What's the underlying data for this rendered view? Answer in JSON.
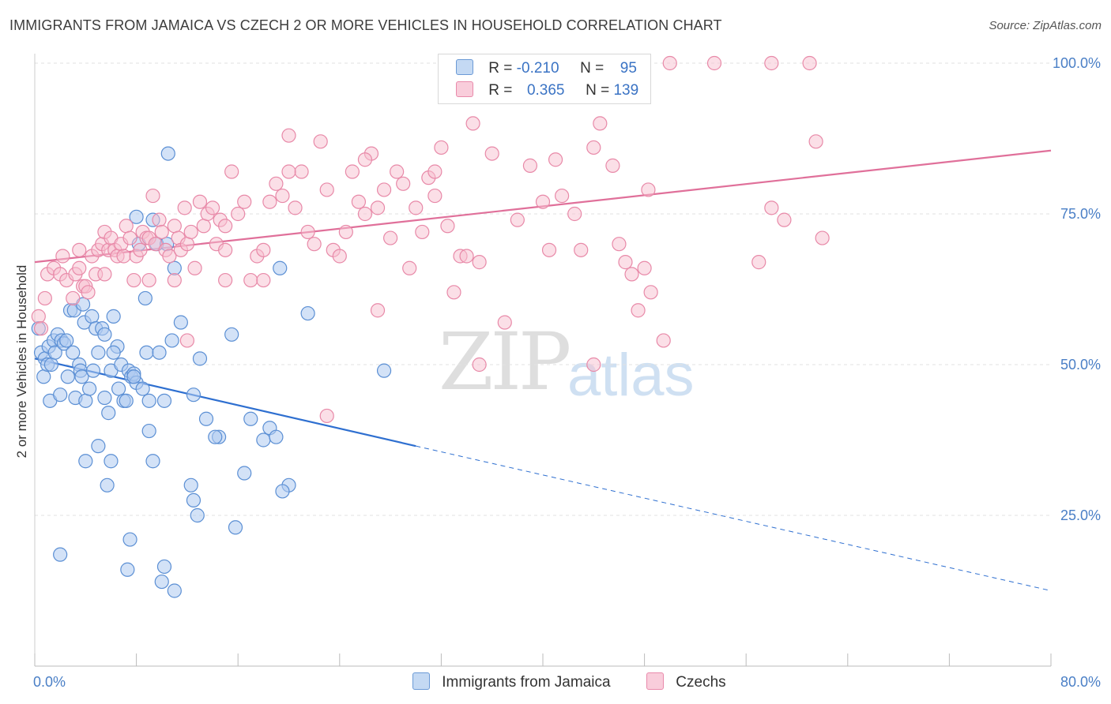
{
  "header": {
    "title": "IMMIGRANTS FROM JAMAICA VS CZECH 2 OR MORE VEHICLES IN HOUSEHOLD CORRELATION CHART",
    "source": "Source: ZipAtlas.com"
  },
  "watermark": {
    "zip": "ZIP",
    "atlas": "atlas"
  },
  "legend": {
    "rows": [
      {
        "r_label": "R =",
        "r_value": "-0.210",
        "n_label": "N =",
        "n_value": "95"
      },
      {
        "r_label": "R =",
        "r_value": "0.365",
        "n_label": "N =",
        "n_value": "139"
      }
    ]
  },
  "bottom_legend": {
    "series_a": "Immigrants from Jamaica",
    "series_b": "Czechs"
  },
  "colors": {
    "jamaica_fill": "#aecbf0",
    "jamaica_stroke": "#5b8fd4",
    "jamaica_line": "#2e6fd0",
    "czech_fill": "#f7bfd0",
    "czech_stroke": "#e889a8",
    "czech_line": "#e0709a",
    "tick_label": "#4a7fc6",
    "grid": "#e2e2e2"
  },
  "chart_data": {
    "type": "scatter",
    "ylabel": "2 or more Vehicles in Household",
    "xlim": [
      0,
      80
    ],
    "ylim": [
      0,
      105
    ],
    "x_tick_labels": [
      "0.0%",
      "80.0%"
    ],
    "y_ticks": [
      25,
      50,
      75,
      100
    ],
    "y_tick_labels": [
      "25.0%",
      "50.0%",
      "75.0%",
      "100.0%"
    ],
    "grid": true,
    "legend_placement": "top-center",
    "series": [
      {
        "name": "Immigrants from Jamaica",
        "r": -0.21,
        "n": 95,
        "trend": {
          "x0": 0,
          "y0": 51,
          "x1": 30,
          "y1": 36.5,
          "x_extended": 80,
          "y_extended": 12.5
        },
        "points": [
          [
            0.3,
            56
          ],
          [
            0.5,
            52
          ],
          [
            0.7,
            48
          ],
          [
            0.8,
            51
          ],
          [
            1.0,
            50
          ],
          [
            1.1,
            53
          ],
          [
            1.2,
            44
          ],
          [
            1.3,
            50
          ],
          [
            1.5,
            54
          ],
          [
            1.6,
            52
          ],
          [
            1.8,
            55
          ],
          [
            2.0,
            45
          ],
          [
            2.1,
            54
          ],
          [
            2.3,
            53.5
          ],
          [
            2.5,
            54
          ],
          [
            2.6,
            48
          ],
          [
            2.8,
            59
          ],
          [
            3.0,
            52
          ],
          [
            3.1,
            59
          ],
          [
            3.2,
            44.5
          ],
          [
            3.5,
            50
          ],
          [
            3.6,
            49
          ],
          [
            3.7,
            48
          ],
          [
            3.9,
            57
          ],
          [
            4.0,
            44
          ],
          [
            4.3,
            46
          ],
          [
            4.5,
            58
          ],
          [
            4.6,
            49
          ],
          [
            4.8,
            56
          ],
          [
            5.0,
            52
          ],
          [
            5.3,
            56
          ],
          [
            5.5,
            55
          ],
          [
            5.8,
            42
          ],
          [
            6.0,
            49
          ],
          [
            6.2,
            58
          ],
          [
            6.5,
            53
          ],
          [
            6.6,
            46
          ],
          [
            6.8,
            50
          ],
          [
            7.0,
            44
          ],
          [
            7.2,
            44
          ],
          [
            7.4,
            49
          ],
          [
            7.6,
            48
          ],
          [
            7.8,
            48.5
          ],
          [
            8.0,
            47
          ],
          [
            8.2,
            70
          ],
          [
            8.5,
            46
          ],
          [
            8.7,
            61
          ],
          [
            8.8,
            52
          ],
          [
            9.0,
            39
          ],
          [
            9.3,
            74
          ],
          [
            9.6,
            70
          ],
          [
            9.8,
            52
          ],
          [
            10.2,
            44
          ],
          [
            10.4,
            70
          ],
          [
            10.8,
            54
          ],
          [
            11.0,
            66
          ],
          [
            12.5,
            45
          ],
          [
            13.0,
            51
          ],
          [
            13.5,
            41
          ],
          [
            14.5,
            38
          ],
          [
            15.5,
            55
          ],
          [
            15.8,
            23
          ],
          [
            16.5,
            32
          ],
          [
            17.0,
            41
          ],
          [
            18.0,
            37.5
          ],
          [
            18.5,
            39.5
          ],
          [
            19.0,
            38
          ],
          [
            19.3,
            66
          ],
          [
            21.5,
            58.5
          ],
          [
            27.5,
            49
          ],
          [
            5.5,
            44.5
          ],
          [
            4.0,
            34
          ],
          [
            5.0,
            36.5
          ],
          [
            5.7,
            30
          ],
          [
            6.0,
            34
          ],
          [
            7.5,
            21
          ],
          [
            7.3,
            16
          ],
          [
            9.3,
            34
          ],
          [
            10.2,
            16.5
          ],
          [
            10.0,
            14
          ],
          [
            11.0,
            12.5
          ],
          [
            12.3,
            30
          ],
          [
            12.5,
            27.5
          ],
          [
            12.8,
            25
          ],
          [
            14.2,
            38
          ],
          [
            20.0,
            30
          ],
          [
            19.5,
            29
          ],
          [
            2.0,
            18.5
          ],
          [
            10.5,
            85
          ],
          [
            8.0,
            74.5
          ],
          [
            3.8,
            60
          ],
          [
            6.2,
            52
          ],
          [
            7.8,
            48
          ],
          [
            9.0,
            44
          ],
          [
            11.5,
            57
          ]
        ]
      },
      {
        "name": "Czechs",
        "r": 0.365,
        "n": 139,
        "trend": {
          "x0": 0,
          "y0": 67,
          "x1": 80,
          "y1": 85.5
        },
        "points": [
          [
            0.3,
            58
          ],
          [
            0.5,
            56
          ],
          [
            0.8,
            61
          ],
          [
            1.0,
            65
          ],
          [
            1.5,
            66
          ],
          [
            2.0,
            65
          ],
          [
            2.2,
            68
          ],
          [
            2.5,
            64
          ],
          [
            3.0,
            61
          ],
          [
            3.2,
            65
          ],
          [
            3.5,
            66
          ],
          [
            3.8,
            63
          ],
          [
            4.0,
            63
          ],
          [
            4.2,
            62
          ],
          [
            4.5,
            68
          ],
          [
            4.8,
            65
          ],
          [
            5.0,
            69
          ],
          [
            5.3,
            70
          ],
          [
            5.5,
            72
          ],
          [
            5.8,
            69
          ],
          [
            6.0,
            71
          ],
          [
            6.3,
            69
          ],
          [
            6.5,
            68
          ],
          [
            6.8,
            70
          ],
          [
            7.0,
            68
          ],
          [
            7.2,
            73
          ],
          [
            7.5,
            71
          ],
          [
            7.8,
            64
          ],
          [
            8.0,
            68
          ],
          [
            8.3,
            69
          ],
          [
            8.5,
            72
          ],
          [
            8.8,
            71
          ],
          [
            9.0,
            71
          ],
          [
            9.3,
            78
          ],
          [
            9.5,
            70
          ],
          [
            9.8,
            74
          ],
          [
            10.0,
            72
          ],
          [
            10.3,
            69
          ],
          [
            10.6,
            68
          ],
          [
            11.0,
            73
          ],
          [
            11.3,
            71
          ],
          [
            11.5,
            69
          ],
          [
            11.8,
            76
          ],
          [
            12.0,
            70
          ],
          [
            12.3,
            72
          ],
          [
            12.6,
            66
          ],
          [
            13.0,
            77
          ],
          [
            13.3,
            73
          ],
          [
            13.6,
            75
          ],
          [
            14.0,
            76
          ],
          [
            14.3,
            70
          ],
          [
            14.6,
            74
          ],
          [
            15.0,
            73
          ],
          [
            15.5,
            82
          ],
          [
            16.0,
            75
          ],
          [
            16.5,
            77
          ],
          [
            17.0,
            64
          ],
          [
            17.5,
            68
          ],
          [
            18.0,
            69
          ],
          [
            18.5,
            77
          ],
          [
            19.0,
            80
          ],
          [
            19.5,
            78
          ],
          [
            20.0,
            88
          ],
          [
            20.5,
            76
          ],
          [
            21.0,
            82
          ],
          [
            21.5,
            72
          ],
          [
            22.0,
            70
          ],
          [
            22.5,
            87
          ],
          [
            23.0,
            79
          ],
          [
            23.5,
            69
          ],
          [
            24.0,
            68
          ],
          [
            24.5,
            72
          ],
          [
            25.0,
            82
          ],
          [
            25.5,
            77
          ],
          [
            26.0,
            75
          ],
          [
            26.5,
            85
          ],
          [
            27.0,
            76
          ],
          [
            27.5,
            79
          ],
          [
            28.0,
            71
          ],
          [
            28.5,
            82
          ],
          [
            29.0,
            80
          ],
          [
            29.5,
            66
          ],
          [
            30.0,
            76
          ],
          [
            30.5,
            72
          ],
          [
            31.0,
            81
          ],
          [
            31.5,
            78
          ],
          [
            32.0,
            86
          ],
          [
            32.5,
            73
          ],
          [
            33.0,
            62
          ],
          [
            33.5,
            68
          ],
          [
            34.0,
            68
          ],
          [
            34.5,
            90
          ],
          [
            35.0,
            67
          ],
          [
            36.0,
            85
          ],
          [
            37.0,
            57
          ],
          [
            38.0,
            74
          ],
          [
            39.0,
            83
          ],
          [
            40.0,
            77
          ],
          [
            40.5,
            69
          ],
          [
            41.0,
            84
          ],
          [
            41.5,
            78
          ],
          [
            42.5,
            75
          ],
          [
            43.0,
            69
          ],
          [
            44.0,
            86
          ],
          [
            44.5,
            90
          ],
          [
            45.5,
            83
          ],
          [
            46.0,
            70
          ],
          [
            46.5,
            67
          ],
          [
            47.0,
            65
          ],
          [
            47.5,
            59
          ],
          [
            48.0,
            66
          ],
          [
            48.3,
            79
          ],
          [
            48.5,
            62
          ],
          [
            49.5,
            54
          ],
          [
            50.0,
            100
          ],
          [
            53.5,
            100
          ],
          [
            57.0,
            67
          ],
          [
            58.0,
            76
          ],
          [
            59.0,
            74
          ],
          [
            58.0,
            100
          ],
          [
            61.0,
            100
          ],
          [
            61.5,
            87
          ],
          [
            62.0,
            71
          ],
          [
            44.0,
            50
          ],
          [
            35.0,
            50
          ],
          [
            23.0,
            41.5
          ],
          [
            12.0,
            54
          ],
          [
            11.0,
            64
          ],
          [
            15.0,
            64
          ],
          [
            18.0,
            64
          ],
          [
            9.0,
            64
          ],
          [
            27.0,
            59
          ],
          [
            5.5,
            65
          ],
          [
            3.5,
            69
          ],
          [
            15.0,
            69
          ],
          [
            20.0,
            82
          ],
          [
            40.0,
            100
          ],
          [
            26.0,
            84
          ],
          [
            31.5,
            82
          ]
        ]
      }
    ]
  }
}
